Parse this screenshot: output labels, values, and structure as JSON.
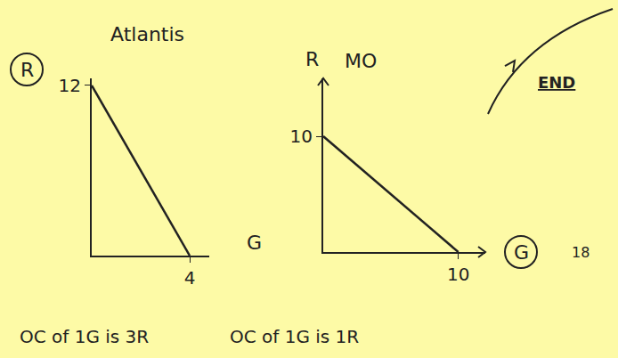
{
  "chart_data": [
    {
      "type": "line",
      "title": "Atlantis",
      "x_label": "G",
      "y_label": "R",
      "x": [
        0,
        4
      ],
      "values": [
        12,
        0
      ],
      "color": "#222222",
      "xlim": [
        0,
        4.8
      ],
      "ylim": [
        0,
        12.5
      ],
      "xticks": [
        4
      ],
      "yticks": [
        12
      ],
      "grid": false,
      "annotation": "OC of 1G is 3R"
    },
    {
      "type": "line",
      "title": "MO",
      "x_label": "G",
      "y_label": "R",
      "x": [
        0,
        10
      ],
      "values": [
        10,
        0
      ],
      "color": "#222222",
      "xlim": [
        0,
        12
      ],
      "ylim": [
        0,
        15
      ],
      "xticks": [
        10
      ],
      "yticks": [
        10
      ],
      "grid": false,
      "annotation": "OC of 1G is 1R"
    }
  ],
  "heading": "END",
  "page_number": 18
}
